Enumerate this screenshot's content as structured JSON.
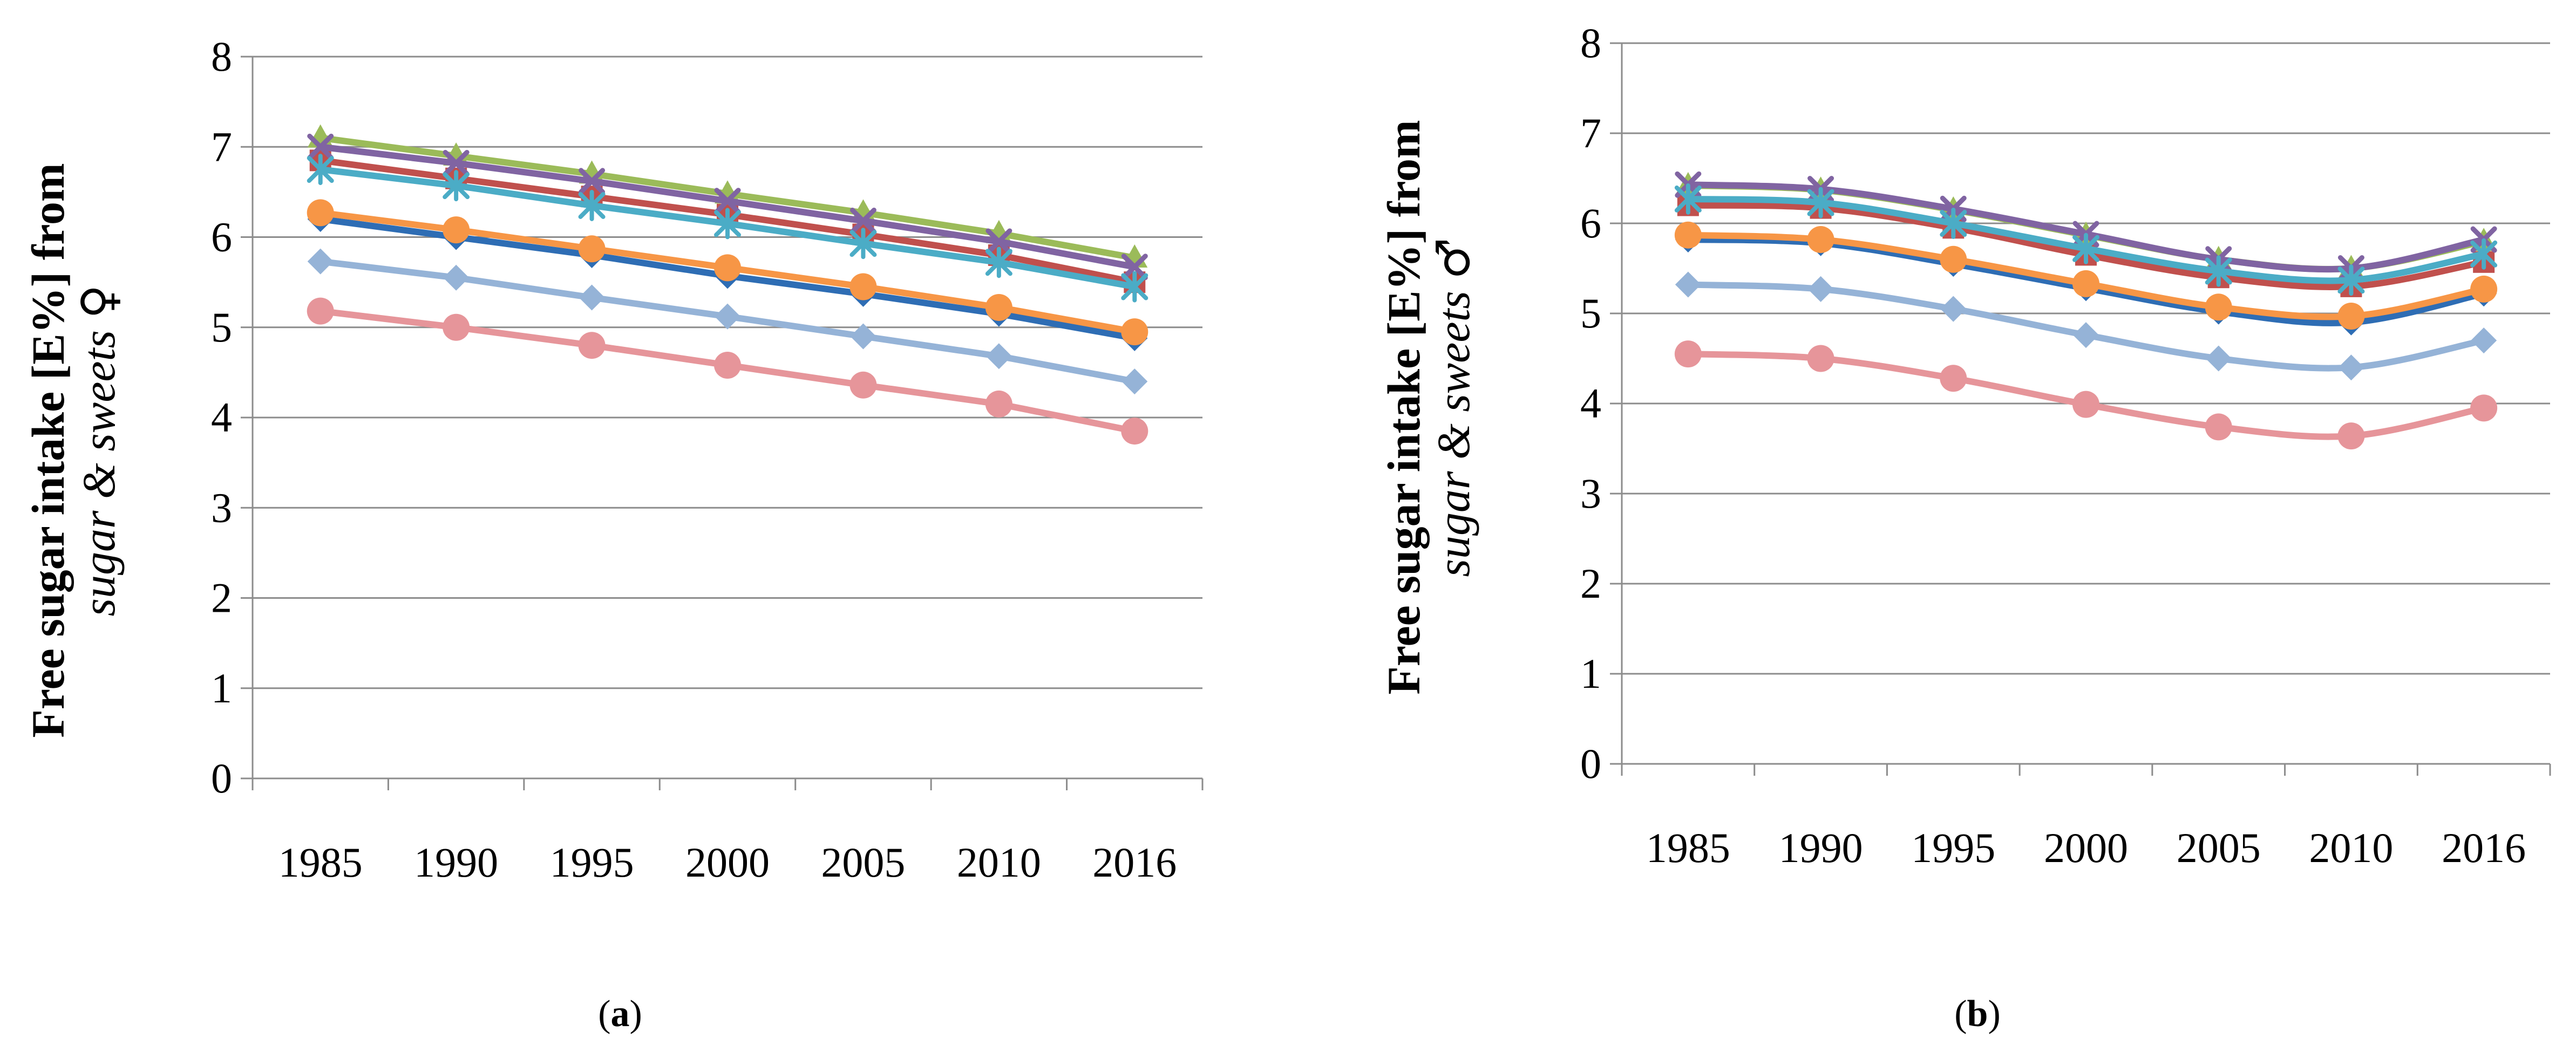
{
  "figure": {
    "panels": [
      {
        "id": "a",
        "caption_open": "(",
        "caption_letter": "a",
        "caption_close": ")",
        "ylabel_main": "Free sugar intake [E%] from",
        "ylabel_italic": "sugar & sweets",
        "ylabel_symbol": "♀"
      },
      {
        "id": "b",
        "caption_open": "(",
        "caption_letter": "b",
        "caption_close": ")",
        "ylabel_main": "Free sugar intake [E%] from",
        "ylabel_italic": "sugar & sweets",
        "ylabel_symbol": "♂"
      }
    ]
  },
  "chart_data": [
    {
      "type": "line",
      "panel": "a",
      "title": "",
      "xlabel": "",
      "ylabel": "Free sugar intake [E%] from sugar & sweets ♀",
      "categories": [
        "1985",
        "1990",
        "1995",
        "2000",
        "2005",
        "2010",
        "2016"
      ],
      "ylim": [
        0,
        8
      ],
      "yticks": [
        0,
        1,
        2,
        3,
        4,
        5,
        6,
        7,
        8
      ],
      "grid": true,
      "smooth": false,
      "series": [
        {
          "color": "#2E6DB4",
          "marker": "diamond",
          "values": [
            6.2,
            6.0,
            5.8,
            5.57,
            5.37,
            5.15,
            4.88
          ]
        },
        {
          "color": "#C0504D",
          "marker": "square",
          "values": [
            6.85,
            6.65,
            6.45,
            6.25,
            6.03,
            5.8,
            5.5
          ]
        },
        {
          "color": "#9BBB59",
          "marker": "triangle",
          "values": [
            7.1,
            6.9,
            6.7,
            6.48,
            6.27,
            6.04,
            5.77
          ]
        },
        {
          "color": "#8064A2",
          "marker": "x",
          "values": [
            7.0,
            6.82,
            6.62,
            6.4,
            6.18,
            5.95,
            5.67
          ]
        },
        {
          "color": "#4BACC6",
          "marker": "star",
          "values": [
            6.75,
            6.57,
            6.35,
            6.15,
            5.93,
            5.72,
            5.45
          ]
        },
        {
          "color": "#F79646",
          "marker": "circle",
          "values": [
            6.27,
            6.08,
            5.87,
            5.66,
            5.45,
            5.22,
            4.95
          ]
        },
        {
          "color": "#95B3D7",
          "marker": "diamond",
          "values": [
            5.73,
            5.55,
            5.33,
            5.12,
            4.9,
            4.68,
            4.4
          ]
        },
        {
          "color": "#E6959A",
          "marker": "circle",
          "values": [
            5.18,
            5.0,
            4.8,
            4.58,
            4.36,
            4.15,
            3.85
          ]
        }
      ]
    },
    {
      "type": "line",
      "panel": "b",
      "title": "",
      "xlabel": "",
      "ylabel": "Free sugar intake [E%] from sugar & sweets ♂",
      "categories": [
        "1985",
        "1990",
        "1995",
        "2000",
        "2005",
        "2010",
        "2016"
      ],
      "ylim": [
        0,
        8
      ],
      "yticks": [
        0,
        1,
        2,
        3,
        4,
        5,
        6,
        7,
        8
      ],
      "grid": true,
      "smooth": true,
      "series": [
        {
          "color": "#2E6DB4",
          "marker": "diamond",
          "values": [
            5.82,
            5.78,
            5.55,
            5.28,
            5.02,
            4.9,
            5.22
          ]
        },
        {
          "color": "#C0504D",
          "marker": "square",
          "values": [
            6.2,
            6.17,
            5.95,
            5.65,
            5.4,
            5.3,
            5.57
          ]
        },
        {
          "color": "#9BBB59",
          "marker": "triangle",
          "values": [
            6.42,
            6.37,
            6.15,
            5.87,
            5.6,
            5.5,
            5.8
          ]
        },
        {
          "color": "#8064A2",
          "marker": "x",
          "values": [
            6.43,
            6.38,
            6.16,
            5.88,
            5.6,
            5.5,
            5.82
          ]
        },
        {
          "color": "#4BACC6",
          "marker": "star",
          "values": [
            6.27,
            6.23,
            6.0,
            5.72,
            5.47,
            5.37,
            5.66
          ]
        },
        {
          "color": "#F79646",
          "marker": "circle",
          "values": [
            5.87,
            5.82,
            5.6,
            5.33,
            5.07,
            4.97,
            5.27
          ]
        },
        {
          "color": "#95B3D7",
          "marker": "diamond",
          "values": [
            5.32,
            5.27,
            5.05,
            4.76,
            4.5,
            4.4,
            4.7
          ]
        },
        {
          "color": "#E6959A",
          "marker": "circle",
          "values": [
            4.55,
            4.5,
            4.28,
            3.99,
            3.74,
            3.64,
            3.95
          ]
        }
      ]
    }
  ]
}
